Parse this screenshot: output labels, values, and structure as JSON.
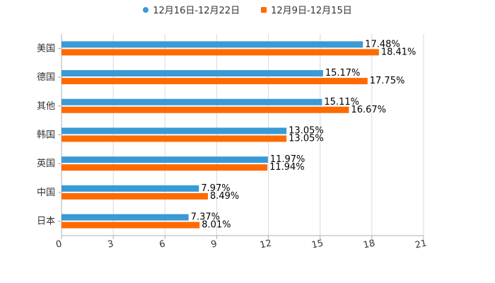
{
  "chart_data": {
    "type": "bar",
    "orientation": "horizontal",
    "title": "",
    "xlabel": "",
    "ylabel": "",
    "categories": [
      "美国",
      "德国",
      "其他",
      "韩国",
      "英国",
      "中国",
      "日本"
    ],
    "series": [
      {
        "name": "12月16日-12月22日",
        "color": "#3a9ad6",
        "values": [
          17.48,
          15.17,
          15.11,
          13.05,
          11.97,
          7.97,
          7.37
        ],
        "labels": [
          "17.48%",
          "15.17%",
          "15.11%",
          "13.05%",
          "11.97%",
          "7.97%",
          "7.37%"
        ]
      },
      {
        "name": "12月9日-12月15日",
        "color": "#ff6a00",
        "values": [
          18.41,
          17.75,
          16.67,
          13.05,
          11.94,
          8.49,
          8.01
        ],
        "labels": [
          "18.41%",
          "17.75%",
          "16.67%",
          "13.05%",
          "11.94%",
          "8.49%",
          "8.01%"
        ]
      }
    ],
    "xlim": [
      0,
      21
    ],
    "ticks": [
      "0",
      "3",
      "6",
      "9",
      "12",
      "15",
      "18",
      "21"
    ],
    "tick_values": [
      0,
      3,
      6,
      9,
      12,
      15,
      18,
      21
    ],
    "grid": true,
    "legend_position": "top-center"
  },
  "colors": {
    "grid": "#d9d9d9",
    "axis": "#b0b0b0"
  }
}
